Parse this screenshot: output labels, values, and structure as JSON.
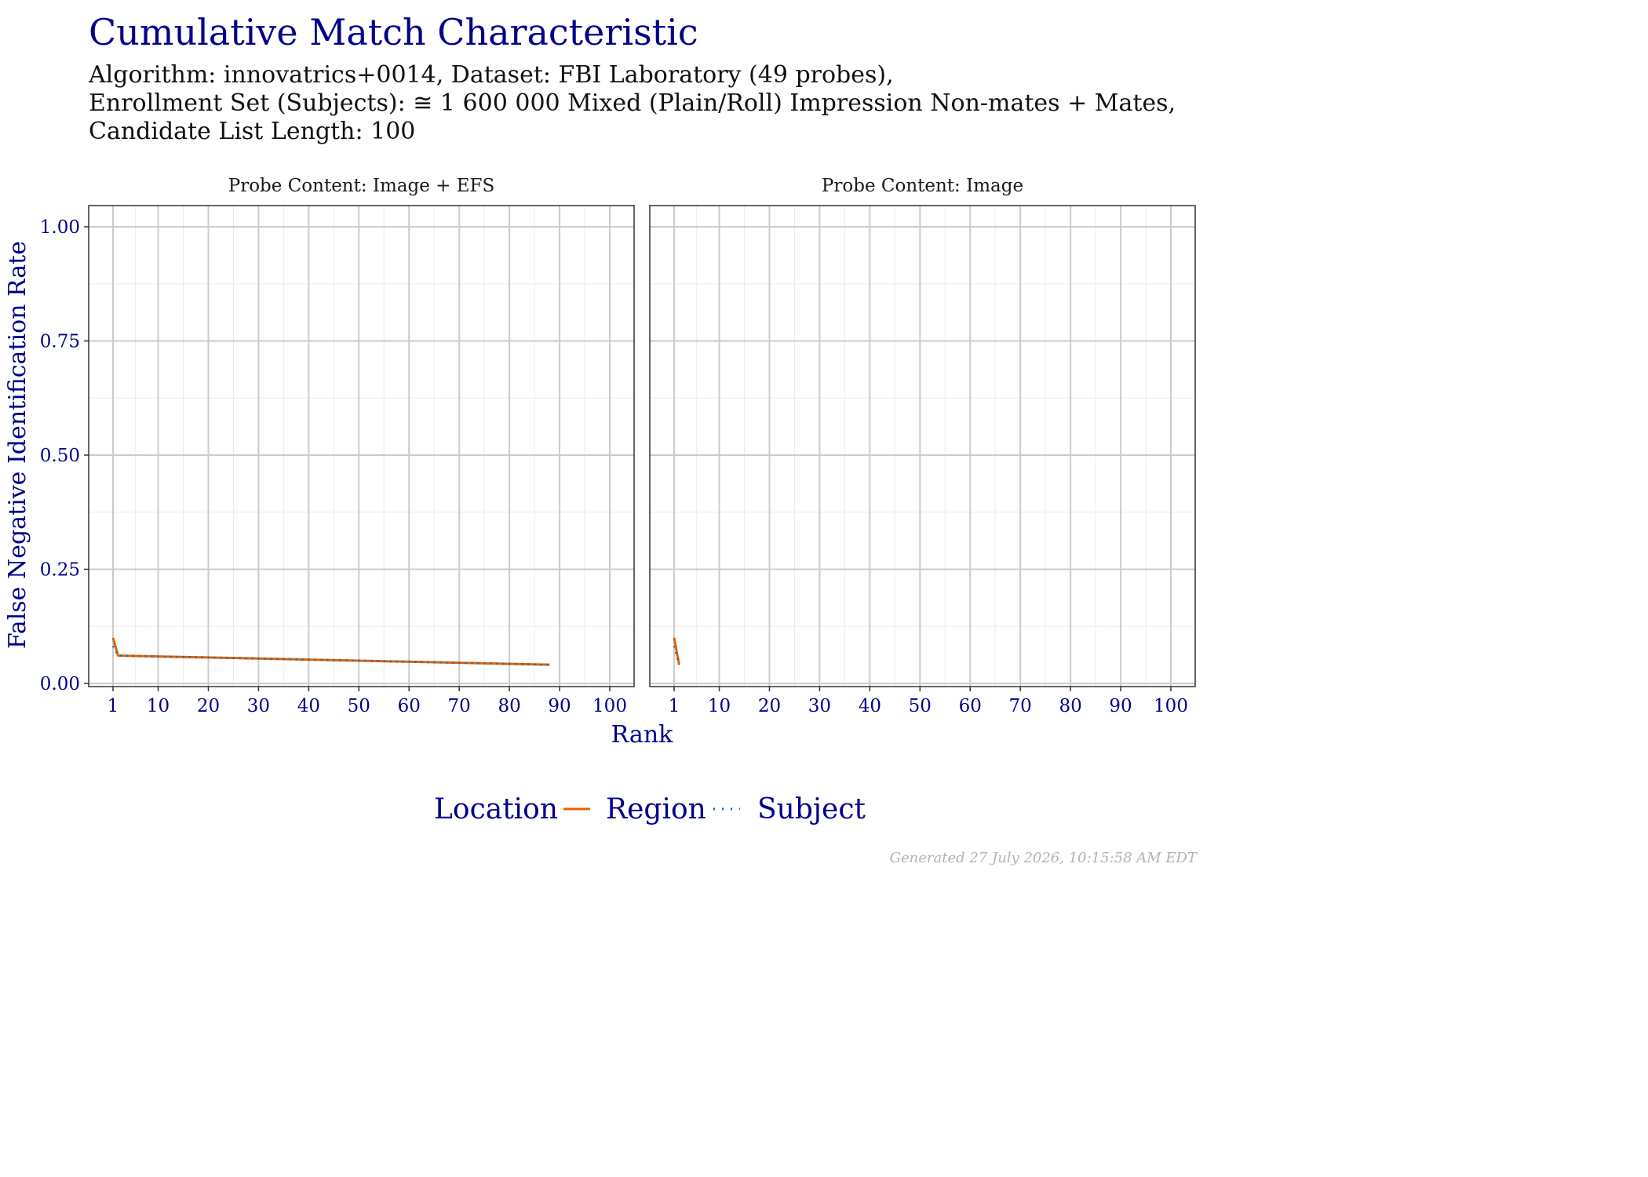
{
  "title": "Cumulative Match Characteristic",
  "subtitle_lines": [
    "Algorithm: innovatrics+0014, Dataset: FBI Laboratory (49 probes),",
    "Enrollment Set (Subjects): ≅ 1 600 000 Mixed (Plain/Roll) Impression Non-mates + Mates,",
    "Candidate List Length: 100"
  ],
  "footer": "Generated 27 July 2026, 10:15:58 AM EDT",
  "colors": {
    "title": "#00008b",
    "region": "#e66101",
    "subject": "#0571b0",
    "panel_border": "#333333",
    "grid_major": "#cccccc",
    "grid_minor": "#ebebeb"
  },
  "chart_data": {
    "type": "line",
    "xlabel": "Rank",
    "ylabel": "False Negative Identification Rate",
    "xlim": [
      1,
      100
    ],
    "ylim": [
      0,
      1
    ],
    "x_ticks": [
      1,
      10,
      20,
      30,
      40,
      50,
      60,
      70,
      80,
      90,
      100
    ],
    "y_ticks": [
      0,
      0.25,
      0.5,
      0.75,
      1
    ],
    "y_tick_labels": [
      "0.00",
      "0.25",
      "0.50",
      "0.75",
      "1.00"
    ],
    "grid": true,
    "legend": {
      "title": "Location",
      "position": "bottom",
      "entries": [
        "Region",
        "Subject"
      ]
    },
    "panels": [
      {
        "label": "Probe Content: Image + EFS",
        "series": [
          {
            "name": "Region",
            "line": "solid",
            "x": [
              1,
              2,
              88
            ],
            "y": [
              0.1,
              0.061,
              0.041
            ]
          },
          {
            "name": "Subject",
            "line": "dotted",
            "x": [
              1,
              2,
              88
            ],
            "y": [
              0.082,
              0.061,
              0.041
            ]
          }
        ]
      },
      {
        "label": "Probe Content: Image",
        "series": [
          {
            "name": "Region",
            "line": "solid",
            "x": [
              1,
              2
            ],
            "y": [
              0.1,
              0.041
            ]
          },
          {
            "name": "Subject",
            "line": "dotted",
            "x": [
              1,
              2
            ],
            "y": [
              0.082,
              0.041
            ]
          }
        ]
      }
    ]
  }
}
